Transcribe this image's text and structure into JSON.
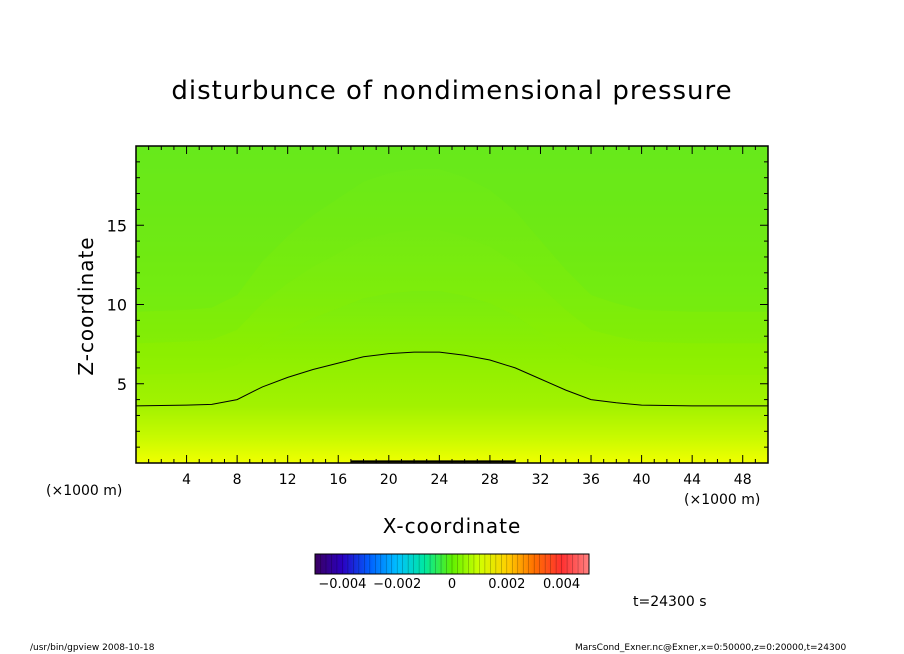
{
  "chart_data": {
    "type": "heatmap",
    "title": "disturbunce of nondimensional pressure",
    "xlabel": "X-coordinate",
    "ylabel": "Z-coordinate",
    "x_unit_left": "(×1000 m)",
    "x_unit_right": "(×1000 m)",
    "xlim": [
      0,
      50
    ],
    "ylim": [
      0,
      20
    ],
    "x_ticks": [
      "4",
      "8",
      "12",
      "16",
      "20",
      "24",
      "28",
      "32",
      "36",
      "40",
      "44",
      "48"
    ],
    "x_tick_values": [
      4,
      8,
      12,
      16,
      20,
      24,
      28,
      32,
      36,
      40,
      44,
      48
    ],
    "y_ticks": [
      "5",
      "10",
      "15"
    ],
    "y_tick_values": [
      5,
      10,
      15
    ],
    "colorbar": {
      "range": [
        -0.005,
        0.005
      ],
      "tick_labels": [
        "−0.004",
        "−0.002",
        "0",
        "0.002",
        "0.004"
      ],
      "tick_values": [
        -0.004,
        -0.002,
        0,
        0.002,
        0.004
      ]
    },
    "contour_zero": {
      "x": [
        0,
        4,
        6,
        8,
        10,
        12,
        14,
        16,
        18,
        20,
        22,
        24,
        26,
        28,
        30,
        32,
        34,
        36,
        38,
        40,
        44,
        48,
        50
      ],
      "z": [
        3.6,
        3.65,
        3.7,
        4.0,
        4.8,
        5.4,
        5.9,
        6.3,
        6.7,
        6.9,
        7.0,
        7.0,
        6.8,
        6.5,
        6.0,
        5.3,
        4.6,
        4.0,
        3.8,
        3.65,
        3.6,
        3.6,
        3.6
      ]
    },
    "field_description": "positive near surface (yellow), decreasing upward to near zero (green)"
  },
  "time_label": "t=24300 s",
  "footer_left": "/usr/bin/gpview  2008-10-18",
  "footer_right": "MarsCond_Exner.nc@Exner,x=0:50000,z=0:20000,t=24300",
  "colors": {
    "surface": "#e8ff00",
    "mid": "#a6f000",
    "upper": "#7ef000",
    "top": "#5cea20"
  }
}
